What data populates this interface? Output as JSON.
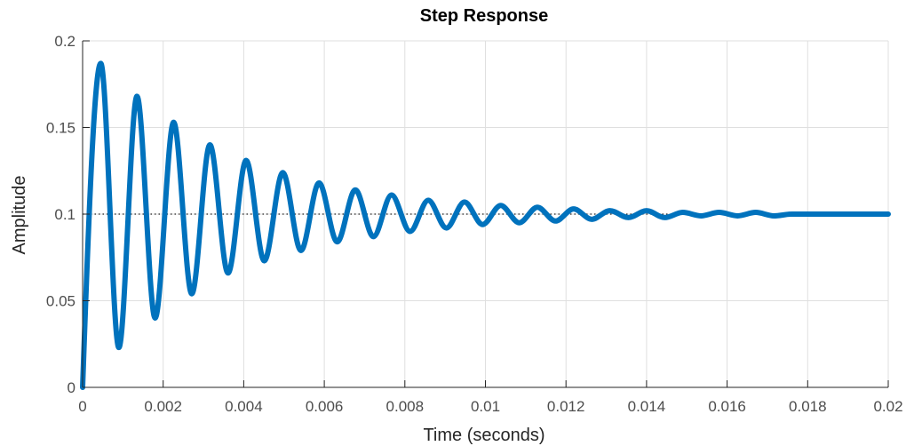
{
  "colors": {
    "series": "#0072bd",
    "reference_line": "#222222",
    "grid": "#dfdfdf",
    "axis": "#262626"
  },
  "chart_data": {
    "type": "line",
    "title": "Step Response",
    "xlabel": "Time (seconds)",
    "ylabel": "Amplitude",
    "xlim": [
      0,
      0.02
    ],
    "ylim": [
      0,
      0.2
    ],
    "x_ticks": [
      0,
      0.002,
      0.004,
      0.006,
      0.008,
      0.01,
      0.012,
      0.014,
      0.016,
      0.018,
      0.02
    ],
    "x_tick_labels": [
      "0",
      "0.002",
      "0.004",
      "0.006",
      "0.008",
      "0.01",
      "0.012",
      "0.014",
      "0.016",
      "0.018",
      "0.02"
    ],
    "y_ticks": [
      0,
      0.05,
      0.1,
      0.15,
      0.2
    ],
    "y_tick_labels": [
      "0",
      "0.05",
      "0.1",
      "0.15",
      "0.2"
    ],
    "grid": true,
    "reference_line": {
      "y": 0.1,
      "style": "dotted"
    },
    "series": [
      {
        "x": [
          0,
          0.00045,
          0.0009,
          0.00135,
          0.0018,
          0.00226,
          0.00271,
          0.00316,
          0.00361,
          0.00406,
          0.00451,
          0.00497,
          0.00542,
          0.00587,
          0.00632,
          0.00677,
          0.00722,
          0.00767,
          0.00813,
          0.00858,
          0.00903,
          0.00948,
          0.00993,
          0.01038,
          0.01084,
          0.01129,
          0.01174,
          0.01219,
          0.01264,
          0.01309,
          0.01355,
          0.014,
          0.01445,
          0.0149,
          0.01535,
          0.0158,
          0.01626,
          0.01671,
          0.01716,
          0.01761,
          0.01806,
          0.01851,
          0.01897,
          0.01942,
          0.01987,
          0.02
        ],
        "values": [
          0,
          0.187,
          0.023,
          0.168,
          0.04,
          0.153,
          0.054,
          0.14,
          0.066,
          0.131,
          0.073,
          0.124,
          0.079,
          0.118,
          0.084,
          0.114,
          0.087,
          0.111,
          0.09,
          0.108,
          0.092,
          0.107,
          0.094,
          0.105,
          0.095,
          0.104,
          0.096,
          0.103,
          0.097,
          0.102,
          0.098,
          0.102,
          0.098,
          0.101,
          0.099,
          0.101,
          0.099,
          0.101,
          0.099,
          0.1,
          0.1,
          0.1,
          0.1,
          0.1,
          0.1,
          0.1
        ]
      }
    ]
  }
}
